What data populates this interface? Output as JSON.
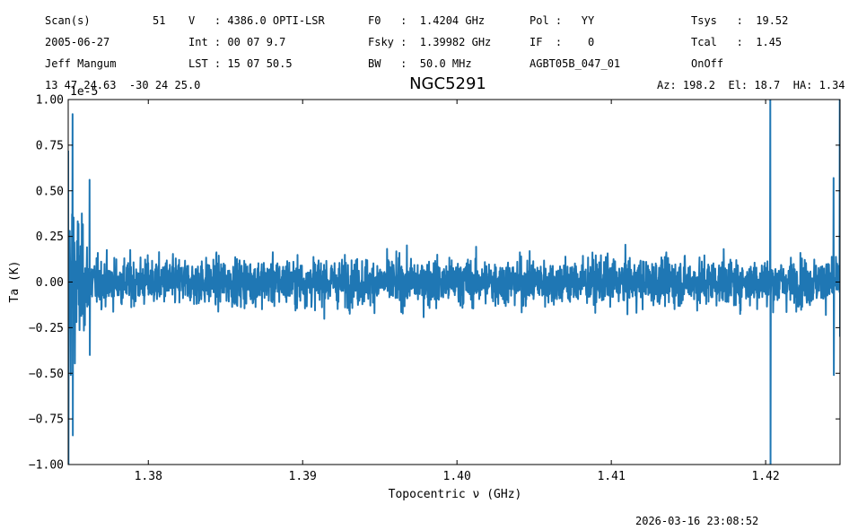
{
  "header": {
    "row1": [
      "Scan(s)",
      "51",
      "V   : 4386.0 OPTI-LSR",
      "F0   :  1.4204 GHz",
      "Pol :   YY",
      "Tsys   :  19.52"
    ],
    "row2": [
      "2005-06-27",
      "Int : 00 07 9.7",
      "Fsky :  1.39982 GHz",
      "IF  :    0",
      "Tcal   :  1.45"
    ],
    "row3": [
      "Jeff Mangum",
      "LST : 15 07 50.5",
      "BW   :  50.0 MHz",
      "AGBT05B_047_01",
      "OnOff"
    ],
    "coords": "13 47 24.63  -30 24 25.0",
    "azel": "Az: 198.2  El: 18.7  HA: 1.34"
  },
  "footer_timestamp": "2026-03-16 23:08:52",
  "chart_data": {
    "type": "line",
    "title": "NGC5291",
    "xlabel": "Topocentric ν (GHz)",
    "ylabel": "Ta (K)",
    "y_multiplier": "1e-5",
    "xlim": [
      1.37481,
      1.42482
    ],
    "ylim": [
      -1.0,
      1.0
    ],
    "x_ticks": [
      1.38,
      1.39,
      1.4,
      1.41,
      1.42
    ],
    "x_tick_labels": [
      "1.38",
      "1.39",
      "1.40",
      "1.41",
      "1.42"
    ],
    "y_ticks": [
      1.0,
      0.75,
      0.5,
      0.25,
      0.0,
      -0.25,
      -0.5,
      -0.75,
      -1.0
    ],
    "y_tick_labels": [
      "1.00",
      "0.75",
      "0.50",
      "0.25",
      "0.00",
      "−0.25",
      "−0.50",
      "−0.75",
      "−1.00"
    ],
    "grid": false,
    "series": [
      {
        "color": "#1f77b4",
        "noise_rms": 0.1,
        "noise_extreme_range": [
          -0.28,
          0.27
        ],
        "features": [
          {
            "x": 1.3748,
            "y": [
              -1.0,
              0.72
            ],
            "note_free": true
          },
          {
            "x": 1.3751,
            "y": [
              -0.84,
              0.92
            ]
          },
          {
            "x": 1.3762,
            "y": [
              -0.4,
              0.56
            ]
          },
          {
            "x": 1.4203,
            "y": [
              -1.0,
              1.0
            ]
          },
          {
            "x": 1.4244,
            "y": [
              -0.51,
              0.57
            ]
          },
          {
            "x": 1.4248,
            "y": [
              -0.3,
              1.0
            ]
          }
        ]
      }
    ]
  }
}
